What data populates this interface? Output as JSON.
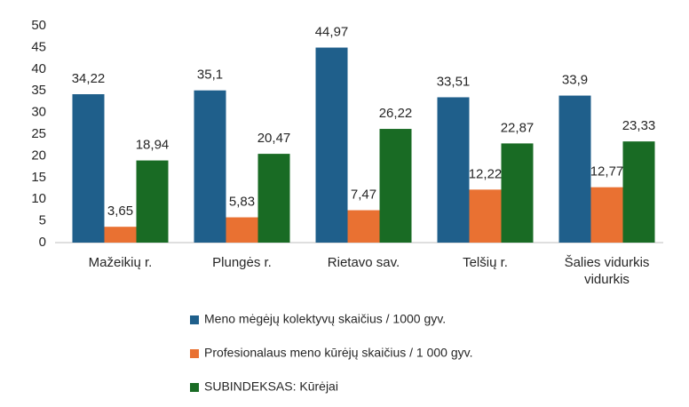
{
  "chart_data": {
    "type": "bar",
    "categories": [
      "Mažeikių r.",
      "Plungės r.",
      "Rietavo sav.",
      "Telšių r.",
      "Šalies vidurkis vidurkis"
    ],
    "series": [
      {
        "name": "Meno mėgėjų kolektyvų skaičius / 1000 gyv.",
        "color": "#1f5f8b",
        "values": [
          34.22,
          35.1,
          44.97,
          33.51,
          33.9
        ],
        "value_labels": [
          "34,22",
          "35,1",
          "44,97",
          "33,51",
          "33,9"
        ]
      },
      {
        "name": "Profesionalaus meno kūrėjų skaičius / 1 000 gyv.",
        "color": "#e97132",
        "values": [
          3.65,
          5.83,
          7.47,
          12.22,
          12.77
        ],
        "value_labels": [
          "3,65",
          "5,83",
          "7,47",
          "12,22",
          "12,77"
        ]
      },
      {
        "name": "SUBINDEKSAS: Kūrėjai",
        "color": "#196b24",
        "values": [
          18.94,
          20.47,
          26.22,
          22.87,
          23.33
        ],
        "value_labels": [
          "18,94",
          "20,47",
          "26,22",
          "22,87",
          "23,33"
        ]
      }
    ],
    "ylim": [
      0,
      50
    ],
    "yticks": [
      0,
      5,
      10,
      15,
      20,
      25,
      30,
      35,
      40,
      45,
      50
    ],
    "grid": false,
    "legend": "bottom"
  }
}
